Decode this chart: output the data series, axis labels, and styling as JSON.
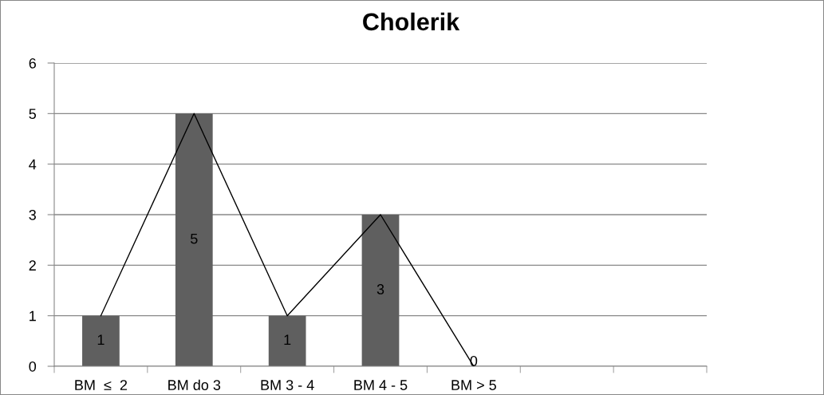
{
  "chart_data": {
    "type": "bar",
    "title": "Cholerik",
    "categories": [
      "BM  ≤  2",
      "BM do 3",
      "BM 3 - 4",
      "BM 4 - 5",
      "BM > 5",
      null,
      null
    ],
    "series": [
      {
        "color": "#5f5f5f",
        "values": [
          1,
          5,
          1,
          3,
          0,
          null,
          null
        ],
        "value_labels": [
          "1",
          "5",
          "1",
          "3",
          "0",
          null,
          null
        ]
      },
      {
        "type": "line",
        "color": "#000000",
        "values": [
          1,
          5,
          1,
          3,
          0,
          null,
          null
        ]
      }
    ],
    "ylim": [
      0,
      6
    ],
    "yticks": [
      0,
      1,
      2,
      3,
      4,
      5,
      6
    ],
    "grid": "y",
    "legend": false,
    "marker": "none",
    "line_style": "solid"
  }
}
